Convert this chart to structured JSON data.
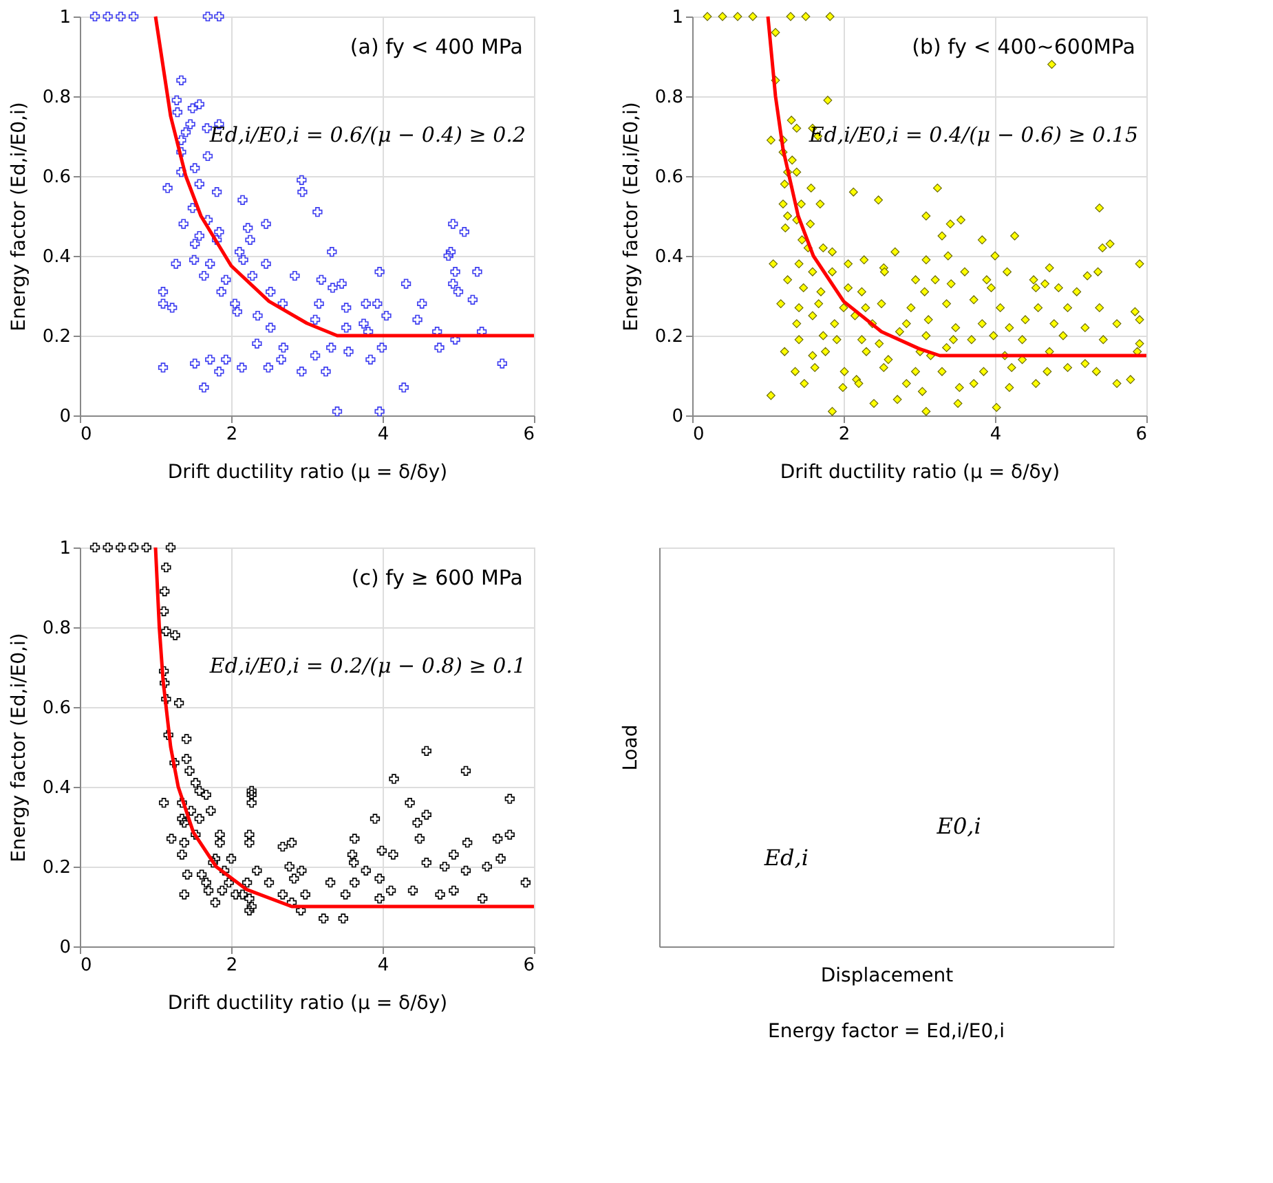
{
  "chart_data": [
    {
      "type": "scatter",
      "xlabel": "Drift ductility ratio (μ = δ/δy)",
      "ylabel": "Energy factor (Ed,i/E0,i)",
      "annotations": [
        "(a) fy < 400 MPa",
        "Ed,i/E0,i = 0.6/(μ − 0.4) ≥ 0.2"
      ],
      "xlim": [
        0,
        6
      ],
      "xticks": [
        0,
        2,
        4,
        6
      ],
      "ylim": [
        0,
        1
      ],
      "yticks": [
        0,
        0.2,
        0.4,
        0.6,
        0.8,
        1
      ],
      "grid": true,
      "series": [
        {
          "color": "#3c3cf0",
          "marker": "cross",
          "x": [
            0.2,
            0.37,
            0.54,
            0.71,
            1.69,
            1.84,
            1.34,
            1.28,
            1.58,
            1.49,
            1.29,
            1.46,
            1.68,
            1.84,
            1.34,
            1.4,
            1.34,
            1.69,
            1.34,
            1.52,
            1.16,
            1.58,
            1.81,
            2.93,
            2.94,
            1.49,
            2.15,
            3.14,
            1.37,
            1.69,
            2.46,
            1.58,
            1.84,
            2.22,
            1.52,
            1.81,
            2.25,
            1.27,
            1.51,
            1.72,
            2.11,
            2.16,
            2.46,
            3.33,
            1.64,
            1.93,
            2.28,
            2.84,
            3.19,
            3.96,
            1.1,
            1.87,
            2.52,
            3.34,
            3.46,
            1.1,
            2.05,
            2.68,
            3.16,
            3.78,
            4.31,
            4.9,
            1.22,
            2.08,
            2.35,
            3.52,
            3.93,
            4.52,
            4.93,
            5.19,
            2.52,
            3.11,
            3.75,
            4.05,
            4.46,
            5.25,
            4.93,
            5.08,
            4.87,
            4.96,
            5.0,
            3.52,
            3.81,
            4.72,
            4.96,
            5.31,
            2.34,
            2.69,
            3.32,
            3.55,
            3.99,
            4.75,
            1.1,
            1.52,
            1.72,
            1.93,
            2.14,
            2.49,
            2.66,
            3.11,
            5.58,
            1.64,
            1.84,
            2.93,
            3.25,
            3.84,
            4.28,
            3.4,
            3.96
          ],
          "values": [
            1,
            1,
            1,
            1,
            1,
            1,
            0.84,
            0.79,
            0.78,
            0.77,
            0.76,
            0.73,
            0.72,
            0.73,
            0.69,
            0.71,
            0.66,
            0.65,
            0.61,
            0.62,
            0.57,
            0.58,
            0.56,
            0.59,
            0.56,
            0.52,
            0.54,
            0.51,
            0.48,
            0.49,
            0.48,
            0.45,
            0.46,
            0.47,
            0.43,
            0.44,
            0.44,
            0.38,
            0.39,
            0.38,
            0.41,
            0.39,
            0.38,
            0.41,
            0.35,
            0.34,
            0.35,
            0.35,
            0.34,
            0.36,
            0.31,
            0.31,
            0.31,
            0.32,
            0.33,
            0.28,
            0.28,
            0.28,
            0.28,
            0.28,
            0.33,
            0.41,
            0.27,
            0.26,
            0.25,
            0.27,
            0.28,
            0.28,
            0.33,
            0.29,
            0.22,
            0.24,
            0.23,
            0.25,
            0.24,
            0.36,
            0.48,
            0.46,
            0.4,
            0.36,
            0.31,
            0.22,
            0.21,
            0.21,
            0.19,
            0.21,
            0.18,
            0.17,
            0.17,
            0.16,
            0.17,
            0.17,
            0.12,
            0.13,
            0.14,
            0.14,
            0.12,
            0.12,
            0.14,
            0.15,
            0.13,
            0.07,
            0.11,
            0.11,
            0.11,
            0.14,
            0.07,
            0.01,
            0.01
          ]
        },
        {
          "type": "line",
          "color": "#ff0000",
          "x": [
            1,
            1.2,
            1.4,
            1.6,
            2,
            2.5,
            3,
            3.4,
            6
          ],
          "values": [
            1,
            0.75,
            0.6,
            0.5,
            0.375,
            0.286,
            0.231,
            0.2,
            0.2
          ]
        }
      ]
    },
    {
      "type": "scatter",
      "xlabel": "Drift ductility ratio (μ = δ/δy)",
      "ylabel": "Energy factor (Ed,i/E0,i)",
      "annotations": [
        "(b) fy < 400~600MPa",
        "Ed,i/E0,i = 0.4/(μ − 0.6) ≥ 0.15"
      ],
      "xlim": [
        0,
        6
      ],
      "xticks": [
        0,
        2,
        4,
        6
      ],
      "ylim": [
        0,
        1
      ],
      "yticks": [
        0,
        0.2,
        0.4,
        0.6,
        0.8,
        1
      ],
      "grid": true,
      "series": [
        {
          "color": "#ffff00",
          "marker": "diamond",
          "x": [
            0.2,
            0.4,
            0.6,
            0.8,
            1.3,
            1.5,
            1.82,
            1.1,
            1.1,
            1.79,
            4.75,
            1.31,
            1.38,
            1.59,
            1.04,
            1.2,
            1.66,
            1.2,
            1.32,
            1.26,
            1.38,
            1.22,
            1.57,
            2.13,
            2.46,
            3.24,
            5.38,
            1.2,
            1.44,
            1.69,
            3.09,
            3.55,
            1.26,
            1.38,
            1.56,
            3.41,
            1.23,
            1.45,
            3.3,
            3.83,
            4.26,
            5.52,
            1.53,
            1.73,
            1.85,
            2.68,
            5.42,
            1.07,
            1.41,
            2.06,
            2.27,
            2.53,
            3.09,
            3.38,
            4.0,
            5.91,
            1.26,
            1.59,
            1.85,
            2.54,
            2.95,
            3.21,
            3.6,
            3.89,
            4.16,
            4.51,
            4.72,
            5.22,
            5.36,
            1.17,
            1.47,
            1.7,
            2.06,
            2.24,
            3.07,
            3.42,
            3.95,
            4.54,
            4.66,
            4.84,
            5.08,
            1.41,
            1.67,
            2.0,
            2.29,
            2.5,
            2.89,
            3.36,
            3.72,
            4.07,
            4.57,
            4.96,
            5.38,
            5.85,
            1.38,
            1.59,
            1.88,
            2.15,
            2.38,
            2.83,
            3.12,
            3.48,
            3.83,
            4.19,
            4.4,
            4.78,
            5.19,
            5.61,
            5.91,
            1.41,
            1.73,
            1.91,
            2.24,
            2.47,
            2.74,
            3.09,
            3.45,
            3.69,
            3.98,
            4.36,
            4.9,
            5.43,
            5.91,
            1.22,
            1.59,
            1.76,
            2.3,
            2.59,
            3.01,
            3.15,
            3.36,
            4.13,
            4.36,
            4.72,
            5.19,
            5.88,
            1.36,
            1.62,
            2.01,
            2.17,
            2.53,
            2.95,
            3.3,
            3.85,
            4.22,
            4.69,
            4.96,
            5.34,
            5.79,
            1.48,
            1.99,
            2.2,
            2.83,
            3.04,
            3.53,
            3.72,
            4.19,
            4.54,
            5.61,
            1.04,
            1.85,
            2.4,
            2.71,
            3.09,
            3.51,
            4.02
          ],
          "values": [
            1,
            1,
            1,
            1,
            1,
            1,
            1,
            0.96,
            0.84,
            0.79,
            0.88,
            0.74,
            0.72,
            0.72,
            0.69,
            0.69,
            0.7,
            0.66,
            0.64,
            0.61,
            0.61,
            0.58,
            0.57,
            0.56,
            0.54,
            0.57,
            0.52,
            0.53,
            0.53,
            0.53,
            0.5,
            0.49,
            0.5,
            0.49,
            0.48,
            0.48,
            0.47,
            0.44,
            0.45,
            0.44,
            0.45,
            0.43,
            0.42,
            0.42,
            0.41,
            0.41,
            0.42,
            0.38,
            0.38,
            0.38,
            0.39,
            0.37,
            0.39,
            0.4,
            0.4,
            0.38,
            0.34,
            0.36,
            0.36,
            0.36,
            0.34,
            0.34,
            0.36,
            0.34,
            0.36,
            0.34,
            0.37,
            0.35,
            0.36,
            0.28,
            0.32,
            0.31,
            0.32,
            0.31,
            0.31,
            0.33,
            0.32,
            0.32,
            0.33,
            0.32,
            0.31,
            0.27,
            0.28,
            0.27,
            0.27,
            0.28,
            0.27,
            0.28,
            0.29,
            0.27,
            0.27,
            0.27,
            0.27,
            0.26,
            0.23,
            0.25,
            0.23,
            0.25,
            0.23,
            0.23,
            0.24,
            0.22,
            0.23,
            0.22,
            0.24,
            0.23,
            0.22,
            0.23,
            0.24,
            0.19,
            0.2,
            0.19,
            0.19,
            0.18,
            0.21,
            0.2,
            0.19,
            0.19,
            0.2,
            0.19,
            0.2,
            0.19,
            0.18,
            0.16,
            0.15,
            0.16,
            0.16,
            0.14,
            0.16,
            0.15,
            0.17,
            0.15,
            0.14,
            0.16,
            0.13,
            0.16,
            0.11,
            0.12,
            0.11,
            0.09,
            0.12,
            0.11,
            0.11,
            0.11,
            0.12,
            0.11,
            0.12,
            0.11,
            0.09,
            0.08,
            0.07,
            0.08,
            0.08,
            0.06,
            0.07,
            0.08,
            0.07,
            0.08,
            0.08,
            0.05,
            0.01,
            0.03,
            0.04,
            0.01,
            0.03,
            0.02
          ]
        },
        {
          "type": "line",
          "color": "#ff0000",
          "x": [
            1,
            1.1,
            1.2,
            1.4,
            1.6,
            2,
            2.5,
            3,
            3.27,
            6
          ],
          "values": [
            1,
            0.8,
            0.667,
            0.5,
            0.4,
            0.286,
            0.21,
            0.167,
            0.15,
            0.15
          ]
        }
      ]
    },
    {
      "type": "scatter",
      "xlabel": "Drift ductility ratio (μ = δ/δy)",
      "ylabel": "Energy factor (Ed,i/E0,i)",
      "annotations": [
        "(c) fy ≥ 600 MPa",
        "Ed,i/E0,i = 0.2/(μ − 0.8) ≥ 0.1"
      ],
      "xlim": [
        0,
        6
      ],
      "xticks": [
        0,
        2,
        4,
        6
      ],
      "ylim": [
        0,
        1
      ],
      "yticks": [
        0,
        0.2,
        0.4,
        0.6,
        0.8,
        1
      ],
      "grid": true,
      "series": [
        {
          "color": "#000000",
          "marker": "cross",
          "x": [
            0.2,
            0.37,
            0.54,
            0.71,
            0.88,
            1.2,
            1.14,
            1.12,
            1.11,
            1.14,
            1.26,
            1.11,
            1.12,
            1.14,
            1.31,
            1.17,
            1.41,
            1.25,
            1.41,
            1.45,
            1.53,
            1.58,
            1.11,
            1.35,
            1.47,
            1.67,
            2.27,
            2.27,
            2.27,
            1.35,
            1.38,
            1.58,
            1.73,
            1.21,
            1.38,
            1.35,
            1.53,
            1.85,
            1.85,
            2.24,
            2.24,
            2.68,
            2.8,
            3.63,
            3.6,
            3.9,
            3.99,
            4.14,
            4.36,
            4.46,
            4.58,
            4.49,
            4.15,
            4.58,
            5.1,
            5.68,
            5.68,
            5.52,
            5.12,
            1.79,
            2.0,
            1.76,
            1.91,
            2.34,
            2.77,
            2.93,
            3.62,
            3.78,
            4.58,
            4.82,
            4.94,
            5.1,
            5.38,
            5.56,
            1.42,
            1.61,
            1.67,
            1.97,
            2.21,
            2.5,
            2.83,
            3.31,
            3.96,
            5.89,
            1.38,
            1.7,
            1.88,
            2.15,
            2.24,
            2.27,
            2.68,
            2.98,
            3.51,
            3.63,
            4.11,
            4.4,
            4.76,
            4.94,
            5.32,
            1.79,
            2.06,
            2.24,
            2.8,
            2.92,
            3.96,
            3.22,
            3.48
          ],
          "values": [
            1,
            1,
            1,
            1,
            1,
            1,
            0.95,
            0.89,
            0.84,
            0.79,
            0.78,
            0.69,
            0.66,
            0.62,
            0.61,
            0.53,
            0.52,
            0.46,
            0.47,
            0.44,
            0.41,
            0.39,
            0.36,
            0.36,
            0.34,
            0.38,
            0.39,
            0.38,
            0.36,
            0.32,
            0.31,
            0.32,
            0.34,
            0.27,
            0.26,
            0.23,
            0.28,
            0.28,
            0.26,
            0.28,
            0.26,
            0.25,
            0.26,
            0.27,
            0.23,
            0.32,
            0.24,
            0.23,
            0.36,
            0.31,
            0.33,
            0.27,
            0.42,
            0.49,
            0.44,
            0.37,
            0.28,
            0.27,
            0.26,
            0.22,
            0.22,
            0.21,
            0.19,
            0.19,
            0.2,
            0.19,
            0.21,
            0.19,
            0.21,
            0.2,
            0.23,
            0.19,
            0.2,
            0.22,
            0.18,
            0.18,
            0.16,
            0.16,
            0.16,
            0.16,
            0.17,
            0.16,
            0.17,
            0.16,
            0.13,
            0.14,
            0.14,
            0.13,
            0.12,
            0.1,
            0.13,
            0.13,
            0.13,
            0.16,
            0.14,
            0.14,
            0.13,
            0.14,
            0.12,
            0.11,
            0.13,
            0.09,
            0.11,
            0.09,
            0.12,
            0.07,
            0.07
          ]
        },
        {
          "type": "line",
          "color": "#ff0000",
          "x": [
            1,
            1.05,
            1.1,
            1.2,
            1.3,
            1.5,
            1.8,
            2.2,
            2.8,
            6
          ],
          "values": [
            1,
            0.8,
            0.667,
            0.5,
            0.4,
            0.286,
            0.2,
            0.143,
            0.1,
            0.1
          ]
        }
      ]
    },
    {
      "type": "other",
      "xlabel": "Displacement",
      "ylabel": "Load",
      "annotations": [
        "Ed,i",
        "E0,i",
        "Energy factor = Ed,i/E0,i"
      ]
    }
  ]
}
